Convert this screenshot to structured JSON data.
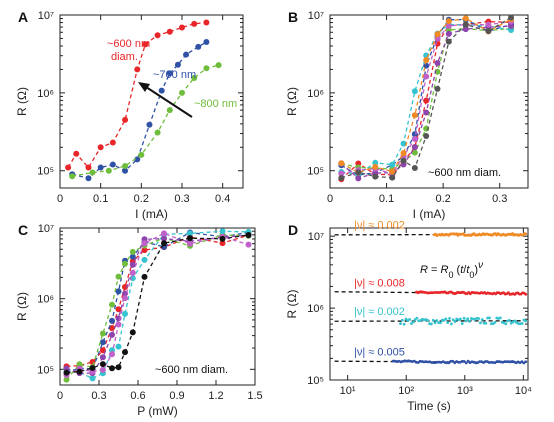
{
  "chart_data": [
    {
      "panel": "A",
      "type": "line",
      "xscale": "linear",
      "yscale": "log",
      "xlabel": "I (mA)",
      "ylabel": "R (Ω)",
      "xlim": [
        0,
        0.45
      ],
      "ylim": [
        60000,
        10000000
      ],
      "xticks": [
        "0",
        "0.1",
        "0.2",
        "0.3",
        "0.4"
      ],
      "yticks": [
        "10⁵",
        "10⁶",
        "10⁷"
      ],
      "annotations": [
        {
          "text": "~600 nm diam.",
          "color": "#e8262a"
        },
        {
          "text": "~700 nm",
          "color": "#2f52a6"
        },
        {
          "text": "~800 nm",
          "color": "#6fbd3c"
        }
      ],
      "series": [
        {
          "name": "~600 nm diam.",
          "color": "#e8262a",
          "x": [
            0.02,
            0.04,
            0.07,
            0.1,
            0.13,
            0.16,
            0.19,
            0.21,
            0.24,
            0.27,
            0.3,
            0.33,
            0.36
          ],
          "y": [
            110000,
            165000,
            110000,
            200000,
            230000,
            450000,
            2000000,
            4200000,
            5500000,
            6100000,
            6900000,
            7700000,
            8000000
          ]
        },
        {
          "name": "~700 nm",
          "color": "#2f52a6",
          "x": [
            0.03,
            0.07,
            0.1,
            0.13,
            0.16,
            0.19,
            0.22,
            0.25,
            0.27,
            0.29,
            0.31,
            0.34,
            0.36
          ],
          "y": [
            90000,
            80000,
            110000,
            120000,
            100000,
            140000,
            390000,
            1070000,
            1780000,
            2300000,
            3100000,
            3900000,
            4500000
          ]
        },
        {
          "name": "~800 nm",
          "color": "#6fbd3c",
          "x": [
            0.03,
            0.08,
            0.12,
            0.16,
            0.2,
            0.24,
            0.27,
            0.3,
            0.33,
            0.36,
            0.39
          ],
          "y": [
            85000,
            95000,
            100000,
            115000,
            160000,
            310000,
            600000,
            1000000,
            1550000,
            2070000,
            2270000
          ]
        }
      ]
    },
    {
      "panel": "B",
      "type": "line",
      "xscale": "linear",
      "yscale": "log",
      "xlabel": "I (mA)",
      "ylabel": "R (Ω)",
      "xlim": [
        0,
        0.35
      ],
      "ylim": [
        60000,
        10000000
      ],
      "xticks": [
        "0",
        "0.1",
        "0.2",
        "0.3"
      ],
      "yticks": [
        "10⁵",
        "10⁶",
        "10⁷"
      ],
      "annotations": [
        {
          "text": "~600 nm diam.",
          "color": "#111111"
        }
      ],
      "curve_model": {
        "kind": "sigmoid",
        "rlow": 100000,
        "rhigh": 7500000,
        "width": 0.012
      },
      "series": [
        {
          "color": "#e8262a",
          "x0": 0.17,
          "x": [
            0.02,
            0.05,
            0.08,
            0.11,
            0.13,
            0.15,
            0.17,
            0.19,
            0.21,
            0.24,
            0.28,
            0.32
          ]
        },
        {
          "color": "#2f52a6",
          "x0": 0.16,
          "x": [
            0.02,
            0.05,
            0.08,
            0.11,
            0.13,
            0.15,
            0.17,
            0.19,
            0.21,
            0.24,
            0.28,
            0.32
          ]
        },
        {
          "color": "#6fbd3c",
          "x0": 0.18,
          "x": [
            0.02,
            0.05,
            0.08,
            0.11,
            0.13,
            0.15,
            0.17,
            0.19,
            0.21,
            0.24,
            0.28,
            0.32
          ]
        },
        {
          "color": "#35c3cf",
          "x0": 0.15,
          "x": [
            0.02,
            0.05,
            0.08,
            0.11,
            0.13,
            0.15,
            0.17,
            0.19,
            0.21,
            0.24,
            0.28,
            0.32
          ]
        },
        {
          "color": "#8e44ad",
          "x0": 0.175,
          "x": [
            0.02,
            0.05,
            0.08,
            0.11,
            0.13,
            0.15,
            0.17,
            0.19,
            0.21,
            0.24,
            0.28,
            0.32
          ]
        },
        {
          "color": "#c060c8",
          "x0": 0.165,
          "x": [
            0.02,
            0.05,
            0.08,
            0.11,
            0.13,
            0.15,
            0.17,
            0.19,
            0.21,
            0.24,
            0.28,
            0.32
          ]
        },
        {
          "color": "#f08a24",
          "x0": 0.155,
          "x": [
            0.02,
            0.05,
            0.08,
            0.11,
            0.13,
            0.15,
            0.17,
            0.19,
            0.21,
            0.24,
            0.28,
            0.32
          ]
        },
        {
          "color": "#555555",
          "x0": 0.185,
          "x": [
            0.02,
            0.05,
            0.08,
            0.11,
            0.13,
            0.15,
            0.17,
            0.19,
            0.21,
            0.24,
            0.28,
            0.32
          ]
        }
      ]
    },
    {
      "panel": "C",
      "type": "line",
      "xscale": "linear",
      "yscale": "log",
      "xlabel": "P (mW)",
      "ylabel": "R (Ω)",
      "xlim": [
        0,
        1.5
      ],
      "ylim": [
        60000,
        10000000
      ],
      "xticks": [
        "0",
        "0.3",
        "0.6",
        "0.9",
        "1.2",
        "1.5"
      ],
      "yticks": [
        "10⁵",
        "10⁶",
        "10⁷"
      ],
      "annotations": [
        {
          "text": "~600 nm diam.",
          "color": "#111111"
        }
      ],
      "curve_model": {
        "kind": "sigmoid",
        "rlow": 90000,
        "rhigh": 7000000,
        "width": 0.06
      },
      "series": [
        {
          "color": "#e8262a",
          "x0": 0.45,
          "x": [
            0.05,
            0.15,
            0.25,
            0.33,
            0.4,
            0.45,
            0.5,
            0.56,
            0.65,
            0.8,
            1.0,
            1.25,
            1.45
          ]
        },
        {
          "color": "#2f52a6",
          "x0": 0.42,
          "x": [
            0.05,
            0.15,
            0.25,
            0.33,
            0.4,
            0.45,
            0.5,
            0.56,
            0.65,
            0.8,
            1.0,
            1.25,
            1.45
          ]
        },
        {
          "color": "#6fbd3c",
          "x0": 0.4,
          "x": [
            0.05,
            0.15,
            0.25,
            0.33,
            0.4,
            0.45,
            0.5,
            0.56,
            0.65,
            0.8,
            1.0,
            1.25,
            1.45
          ]
        },
        {
          "color": "#35c3cf",
          "x0": 0.52,
          "x": [
            0.05,
            0.15,
            0.25,
            0.33,
            0.4,
            0.45,
            0.5,
            0.56,
            0.65,
            0.8,
            1.0,
            1.25,
            1.45
          ]
        },
        {
          "color": "#8e44ad",
          "x0": 0.47,
          "x": [
            0.05,
            0.15,
            0.25,
            0.33,
            0.4,
            0.45,
            0.5,
            0.56,
            0.65,
            0.8,
            1.0,
            1.25,
            1.45
          ]
        },
        {
          "color": "#c060c8",
          "x0": 0.5,
          "x": [
            0.05,
            0.15,
            0.25,
            0.33,
            0.4,
            0.45,
            0.5,
            0.56,
            0.65,
            0.8,
            1.0,
            1.25,
            1.45
          ]
        },
        {
          "color": "#111111",
          "x0": 0.6,
          "x": [
            0.05,
            0.15,
            0.25,
            0.33,
            0.4,
            0.45,
            0.5,
            0.56,
            0.65,
            0.8,
            1.0,
            1.25,
            1.45
          ]
        }
      ]
    },
    {
      "panel": "D",
      "type": "scatter",
      "xscale": "log",
      "yscale": "log",
      "xlabel": "Time (s)",
      "ylabel": "R (Ω)",
      "xlim": [
        5,
        12000
      ],
      "ylim": [
        100000,
        13000000
      ],
      "xticks": [
        "10¹",
        "10²",
        "10³",
        "10⁴"
      ],
      "yticks": [
        "10⁵",
        "10⁶",
        "10⁷"
      ],
      "equation": "R = R0 (t / t0)^ν",
      "equation_parts": {
        "R": "R",
        "eq": " = ",
        "R0": "R",
        "sub0": "0",
        "t": "t",
        "t0": "t",
        "nu": "ν"
      },
      "series": [
        {
          "label": "|ν| ≈ 0.002",
          "color": "#f08a24",
          "r0": 10500000,
          "nu": 0.002,
          "tstart": 300,
          "tmax": 11000
        },
        {
          "label": "|ν| ≈ 0.008",
          "color": "#e8262a",
          "r0": 1650000,
          "nu": -0.008,
          "tstart": 150,
          "tmax": 11000
        },
        {
          "label": "|ν| ≈ 0.002",
          "color": "#35c3cf",
          "r0": 660000,
          "nu": 0.002,
          "tstart": 80,
          "tmax": 11000
        },
        {
          "label": "|ν| ≈ 0.005",
          "color": "#2f52a6",
          "r0": 180000,
          "nu": -0.005,
          "tstart": 60,
          "tmax": 11000
        }
      ]
    }
  ]
}
